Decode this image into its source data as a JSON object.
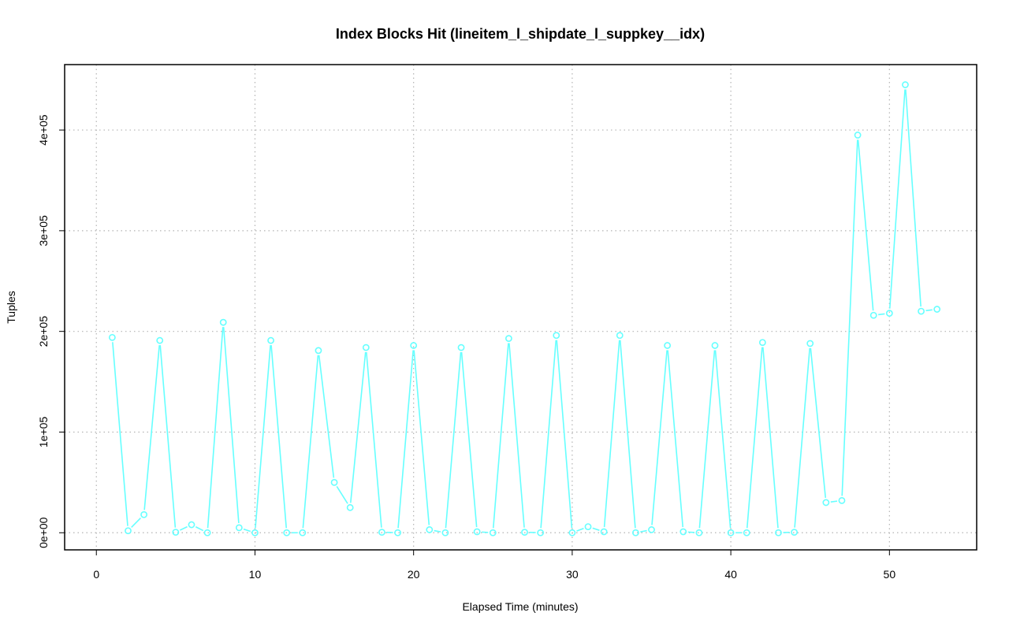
{
  "chart_data": {
    "type": "line",
    "title": "Index Blocks Hit (lineitem_l_shipdate_l_suppkey__idx)",
    "xlabel": "Elapsed Time (minutes)",
    "ylabel": "Tuples",
    "xlim": [
      -2,
      55.5
    ],
    "ylim": [
      -17000,
      465000
    ],
    "x_ticks": [
      0,
      10,
      20,
      30,
      40,
      50
    ],
    "x_tick_labels": [
      "0",
      "10",
      "20",
      "30",
      "40",
      "50"
    ],
    "y_ticks": [
      0,
      100000,
      200000,
      300000,
      400000
    ],
    "y_tick_labels": [
      "0e+00",
      "1e+05",
      "2e+05",
      "3e+05",
      "4e+05"
    ],
    "grid": true,
    "series": [
      {
        "color": "#66ffff",
        "marker": "circle",
        "x": [
          1,
          2,
          3,
          4,
          5,
          6,
          7,
          8,
          9,
          10,
          11,
          12,
          13,
          14,
          15,
          16,
          17,
          18,
          19,
          20,
          21,
          22,
          23,
          24,
          25,
          26,
          27,
          28,
          29,
          30,
          31,
          32,
          33,
          34,
          35,
          36,
          37,
          38,
          39,
          40,
          41,
          42,
          43,
          44,
          45,
          46,
          47,
          48,
          49,
          50,
          51,
          52,
          53
        ],
        "y": [
          194000,
          2000,
          18000,
          191000,
          500,
          8000,
          0,
          209000,
          5000,
          0,
          191000,
          0,
          0,
          181000,
          50000,
          25000,
          184000,
          500,
          0,
          186000,
          3000,
          0,
          184000,
          1000,
          0,
          193000,
          500,
          0,
          196000,
          0,
          6000,
          1000,
          196000,
          0,
          3000,
          186000,
          1000,
          0,
          186000,
          0,
          0,
          189000,
          0,
          500,
          188000,
          30000,
          32000,
          395000,
          216000,
          218000,
          445000,
          220000,
          222000
        ]
      }
    ]
  }
}
